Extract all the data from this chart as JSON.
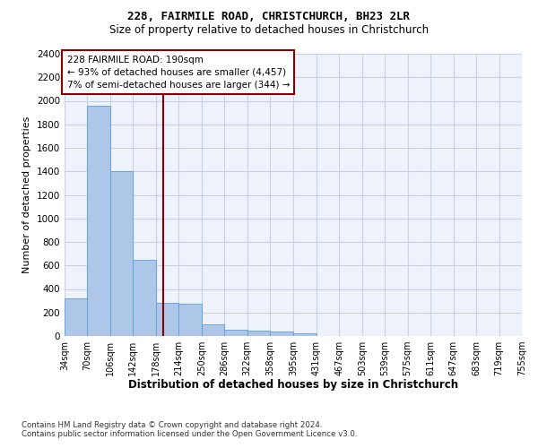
{
  "title1": "228, FAIRMILE ROAD, CHRISTCHURCH, BH23 2LR",
  "title2": "Size of property relative to detached houses in Christchurch",
  "xlabel": "Distribution of detached houses by size in Christchurch",
  "ylabel": "Number of detached properties",
  "bin_labels": [
    "34sqm",
    "70sqm",
    "106sqm",
    "142sqm",
    "178sqm",
    "214sqm",
    "250sqm",
    "286sqm",
    "322sqm",
    "358sqm",
    "395sqm",
    "431sqm",
    "467sqm",
    "503sqm",
    "539sqm",
    "575sqm",
    "611sqm",
    "647sqm",
    "683sqm",
    "719sqm",
    "755sqm"
  ],
  "bin_edges": [
    34,
    70,
    106,
    142,
    178,
    214,
    250,
    286,
    322,
    358,
    395,
    431,
    467,
    503,
    539,
    575,
    611,
    647,
    683,
    719,
    755
  ],
  "bar_heights": [
    320,
    1960,
    1400,
    650,
    280,
    275,
    100,
    50,
    45,
    40,
    25,
    0,
    0,
    0,
    0,
    0,
    0,
    0,
    0,
    0
  ],
  "bar_color": "#aec6e8",
  "bar_edge_color": "#5a9fd4",
  "property_size": 190,
  "vline_color": "#8b0000",
  "annotation_text": "228 FAIRMILE ROAD: 190sqm\n← 93% of detached houses are smaller (4,457)\n7% of semi-detached houses are larger (344) →",
  "annotation_box_color": "#8b0000",
  "ylim": [
    0,
    2400
  ],
  "yticks": [
    0,
    200,
    400,
    600,
    800,
    1000,
    1200,
    1400,
    1600,
    1800,
    2000,
    2200,
    2400
  ],
  "footer1": "Contains HM Land Registry data © Crown copyright and database right 2024.",
  "footer2": "Contains public sector information licensed under the Open Government Licence v3.0.",
  "bg_color": "#eef2fb",
  "grid_color": "#c8d0e8"
}
